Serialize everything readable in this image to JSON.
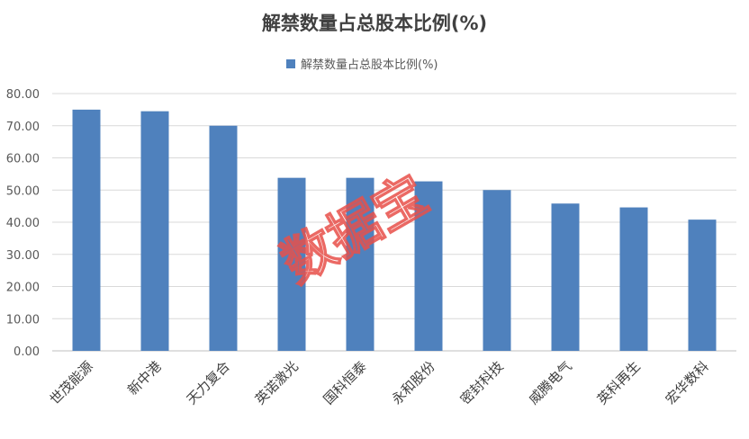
{
  "chart_data": {
    "type": "bar",
    "title": "解禁数量占总股本比例(%)",
    "legend": {
      "label": "解禁数量占总股本比例(%)",
      "placement": "top-center"
    },
    "categories": [
      "世茂能源",
      "新中港",
      "天力复合",
      "英诺激光",
      "国科恒泰",
      "永和股份",
      "密封科技",
      "威腾电气",
      "英科再生",
      "宏华数科"
    ],
    "values": [
      75.0,
      74.5,
      70.0,
      53.8,
      53.8,
      52.7,
      50.0,
      45.8,
      44.6,
      40.8
    ],
    "ylim": [
      0,
      80
    ],
    "yticks": [
      "0.00",
      "10.00",
      "20.00",
      "30.00",
      "40.00",
      "50.00",
      "60.00",
      "70.00",
      "80.00"
    ],
    "grid": true,
    "xlabel": "",
    "ylabel": ""
  },
  "watermark": "数据宝",
  "colors": {
    "bar": "#4f81bd",
    "grid": "#d9d9d9",
    "text": "#404040",
    "watermark": "#e8504a"
  }
}
